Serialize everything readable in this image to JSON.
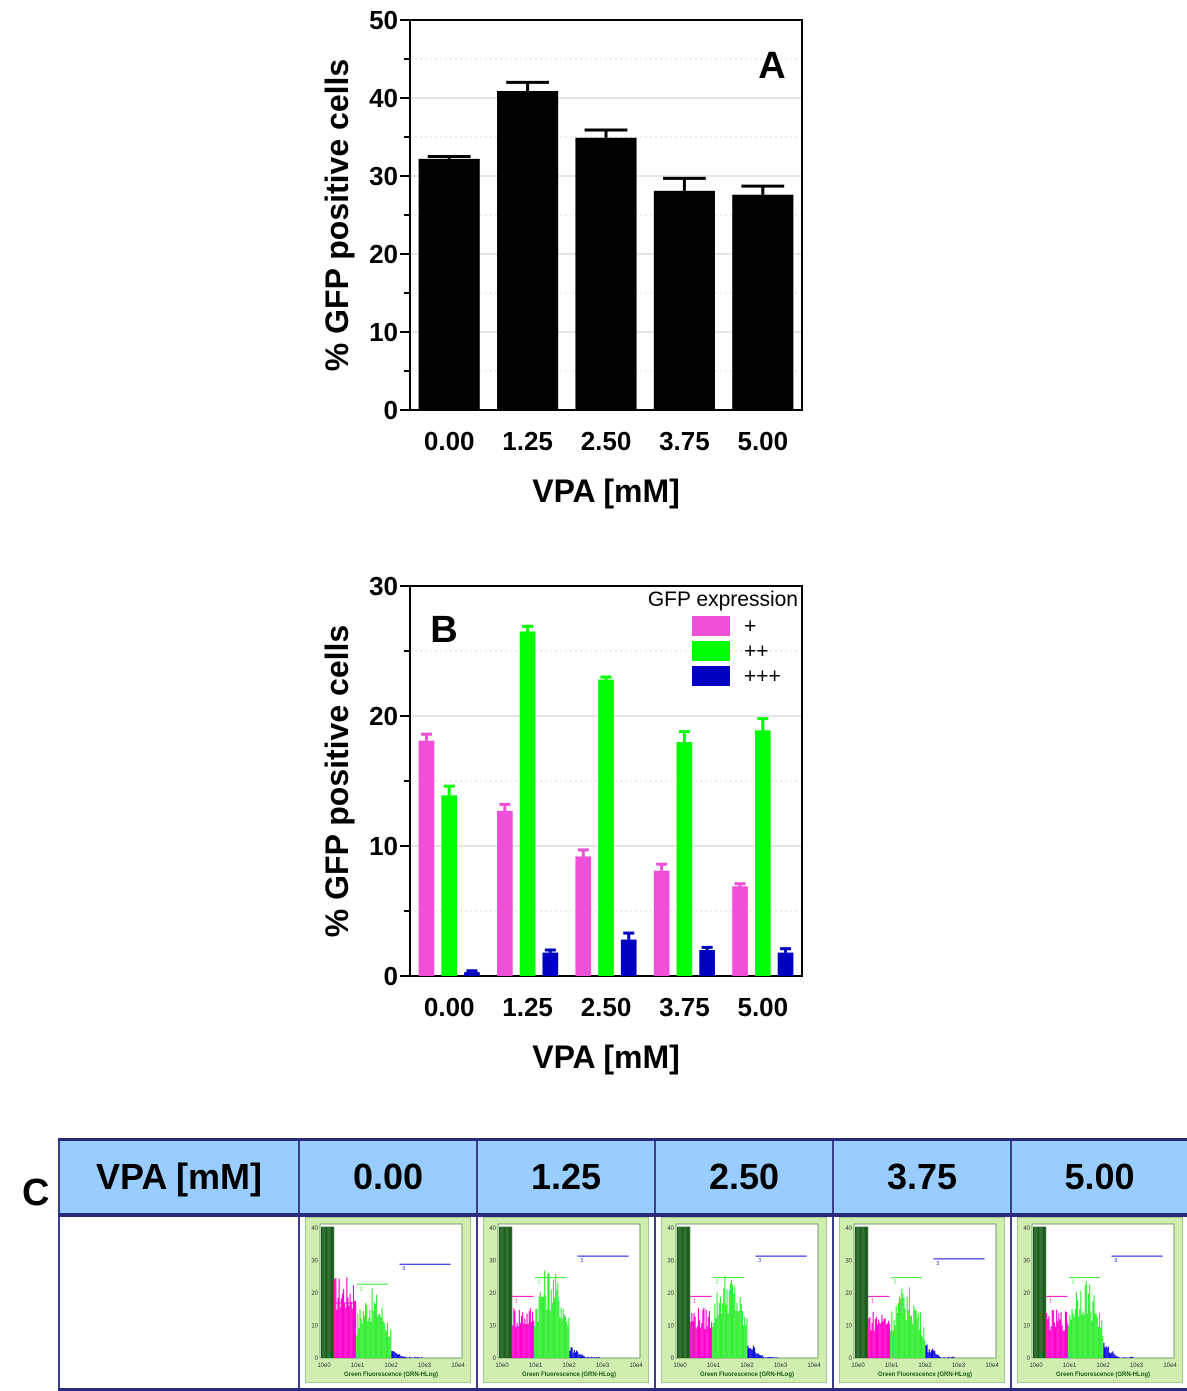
{
  "chart_data": [
    {
      "type": "bar",
      "panel_label": "A",
      "categories": [
        "0.00",
        "1.25",
        "2.50",
        "3.75",
        "5.00"
      ],
      "values": [
        32.2,
        40.9,
        34.9,
        28.1,
        27.6
      ],
      "errors": [
        0.3,
        1.1,
        1.0,
        1.6,
        1.1
      ],
      "xlabel": "VPA [mM]",
      "ylabel": "% GFP positive cells",
      "ylim": [
        0,
        50
      ],
      "yticks": [
        0,
        10,
        20,
        30,
        40,
        50
      ],
      "bar_color": "#000000",
      "grid": true
    },
    {
      "type": "bar",
      "panel_label": "B",
      "categories": [
        "0.00",
        "1.25",
        "2.50",
        "3.75",
        "5.00"
      ],
      "legend_title": "GFP expression",
      "legend_position": "top-right",
      "series": [
        {
          "name": "+",
          "color": "#f04fd8",
          "values": [
            18.1,
            12.7,
            9.2,
            8.1,
            6.9
          ],
          "errors": [
            0.5,
            0.5,
            0.5,
            0.5,
            0.2
          ]
        },
        {
          "name": "++",
          "color": "#00ff00",
          "values": [
            13.9,
            26.5,
            22.8,
            18.0,
            18.9
          ],
          "errors": [
            0.7,
            0.4,
            0.2,
            0.8,
            0.9
          ]
        },
        {
          "name": "+++",
          "color": "#0000c0",
          "values": [
            0.3,
            1.8,
            2.8,
            2.0,
            1.8
          ],
          "errors": [
            0.1,
            0.2,
            0.5,
            0.2,
            0.3
          ]
        }
      ],
      "xlabel": "VPA [mM]",
      "ylabel": "% GFP positive cells",
      "ylim": [
        0,
        30
      ],
      "yticks": [
        0,
        10,
        20,
        30
      ],
      "grid": true
    }
  ],
  "panel_c": {
    "label": "C",
    "header_label": "VPA [mM]",
    "columns": [
      "0.00",
      "1.25",
      "2.50",
      "3.75",
      "5.00"
    ],
    "histogram": {
      "y_ticks": [
        "40",
        "30",
        "20",
        "10",
        "0"
      ],
      "x_ticks": [
        "10e0",
        "10e1",
        "10e2",
        "10e3",
        "10e4"
      ],
      "x_label": "Green Fluorescence (GRN-HLog)",
      "colors": {
        "background": "#cfeeb0",
        "dark": "#1a5c1a",
        "pink": "#ff00cc",
        "green": "#33ee33",
        "blue": "#1010dd"
      },
      "gate_labels": [
        "1",
        "2",
        "3"
      ]
    }
  }
}
